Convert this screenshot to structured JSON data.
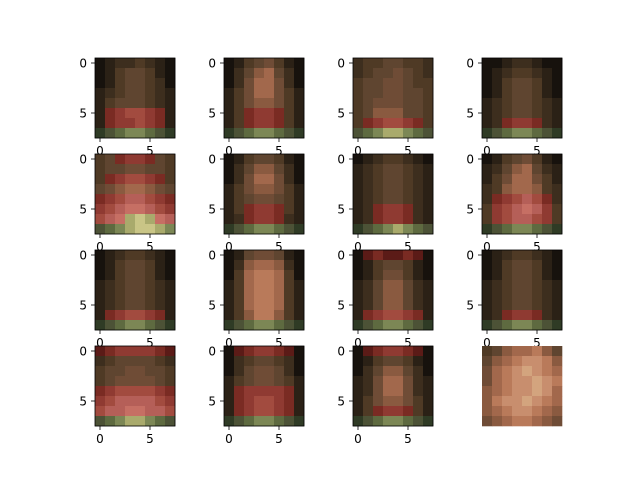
{
  "chart_data": {
    "type": "heatmap",
    "layout": "4x4 grid of 8x8 pixel image thumbnails (matplotlib imshow), RGB",
    "palette": {
      "A": "#17120d",
      "B": "#2b2116",
      "C": "#3d2e1e",
      "D": "#4f3a25",
      "E": "#5f4530",
      "F": "#6f4c36",
      "G": "#8a5a40",
      "H": "#a2684c",
      "I": "#b97a5a",
      "J": "#c88e6e",
      "K": "#d3a47e",
      "L": "#5b1b17",
      "M": "#7a2b23",
      "N": "#8f3a32",
      "O": "#a24b3f",
      "P": "#b55f58",
      "Q": "#c66f64",
      "R": "#4c5236",
      "S": "#5e6a40",
      "T": "#7c8755",
      "U": "#a9aa6c",
      "V": "#c9c586",
      "W": "#3a3220",
      "X": "#556038",
      "Y": "#2f3b25",
      "Z": "#6b6a3c"
    },
    "images": [
      {
        "axes": true,
        "x_ticks": [
          "0",
          "5"
        ],
        "y_ticks": [
          "0",
          "5"
        ],
        "rows": [
          "ABCCDCBA",
          "ABDEEDBA",
          "ABDEEDCA",
          "BCDEEDCB",
          "BDEEEDCB",
          "BMNOONMB",
          "BMNNONMB",
          "YRSTTSRY"
        ]
      },
      {
        "axes": true,
        "x_ticks": [
          "0",
          "5"
        ],
        "y_ticks": [
          "0",
          "5"
        ],
        "rows": [
          "ABDEFDBA",
          "ACEGHECA",
          "ACFHHFCA",
          "BDFHHFDB",
          "BDFGGFDB",
          "BDMNNMDB",
          "BDMNNMDB",
          "YRSTTSRY"
        ]
      },
      {
        "axes": true,
        "x_ticks": [
          "0",
          "5"
        ],
        "y_ticks": [
          "0",
          "5"
        ],
        "rows": [
          "CDDEEDDC",
          "CDEEFEDC",
          "DEEFFEDD",
          "DEEFFEED",
          "DEFFFEED",
          "DEGGGEED",
          "DMNOONMD",
          "RSTUUTSR"
        ]
      },
      {
        "axes": true,
        "x_ticks": [
          "0",
          "5"
        ],
        "y_ticks": [
          "0",
          "5"
        ],
        "rows": [
          "AABCCBAA",
          "ABCDDCBA",
          "ABDEEDBA",
          "ABDEEDBA",
          "BCDEEDCB",
          "BCDEEDCB",
          "BCMNNMCB",
          "YRSTTSRY"
        ]
      },
      {
        "axes": true,
        "x_ticks": [
          "0",
          "5"
        ],
        "y_ticks": [
          "0",
          "5"
        ],
        "rows": [
          "DEMNNMED",
          "DEEFFEED",
          "DMNOONMD",
          "EFGHHGFE",
          "MNOPPONM",
          "NOPQQPON",
          "OPQUVUQP",
          "RSTUVVUT"
        ]
      },
      {
        "axes": true,
        "x_ticks": [
          "0",
          "5"
        ],
        "y_ticks": [
          "0",
          "5"
        ],
        "rows": [
          "ABDEEDBA",
          "ACEGGECA",
          "ACFHHFCA",
          "BDFGGFDB",
          "BDEFFEDB",
          "BDMNNMDB",
          "BCMNNMCB",
          "YRSTTSRY"
        ]
      },
      {
        "axes": true,
        "x_ticks": [
          "0",
          "5"
        ],
        "y_ticks": [
          "0",
          "5"
        ],
        "rows": [
          "ABCDDCBA",
          "BCDEEDCB",
          "BCDEEDCB",
          "BCDEEDCB",
          "BCDEEDCB",
          "BCMNNMCB",
          "BCMNNMCB",
          "YRSTUTSR"
        ]
      },
      {
        "axes": true,
        "x_ticks": [
          "0",
          "5"
        ],
        "y_ticks": [
          "0",
          "5"
        ],
        "rows": [
          "ABDEFDBA",
          "BCEGHECB",
          "BDFHHFDB",
          "CDGHHGDC",
          "CMNOPOMC",
          "DNOPQPND",
          "DNOPPOND",
          "YRSTTSRY"
        ]
      },
      {
        "axes": true,
        "x_ticks": [
          "0",
          "5"
        ],
        "y_ticks": [
          "0",
          "5"
        ],
        "rows": [
          "ABCDDCBA",
          "ABDEEDBA",
          "ABDEEDBA",
          "BCDEEDCB",
          "BCDEEDCB",
          "BCDEEDCB",
          "BMNOONMB",
          "YRSTTSRY"
        ]
      },
      {
        "axes": true,
        "x_ticks": [
          "0",
          "5"
        ],
        "y_ticks": [
          "0",
          "5"
        ],
        "rows": [
          "ABEFFEBA",
          "ACGHHGCA",
          "ADHIIHDA",
          "BDHIIHDB",
          "BDHIIHDB",
          "BDHIIHDB",
          "BDGIIGDB",
          "YRSTTSRY"
        ]
      },
      {
        "axes": true,
        "x_ticks": [
          "0",
          "5"
        ],
        "y_ticks": [
          "0",
          "5"
        ],
        "rows": [
          "ALMLLMLA",
          "ABDEEDBA",
          "ABDFFDBA",
          "BCEGGECB",
          "BCEGGECB",
          "BCEGGECB",
          "BMNOONMB",
          "YRSTTSRY"
        ]
      },
      {
        "axes": true,
        "x_ticks": [
          "0",
          "5"
        ],
        "y_ticks": [
          "0",
          "5"
        ],
        "rows": [
          "ABCDDCBA",
          "ABDEEDBA",
          "ABDEEDBA",
          "BCDEEDCB",
          "BCDEEDCB",
          "BCDEEDCB",
          "BCMNNMCB",
          "YRSTTSRY"
        ]
      },
      {
        "axes": true,
        "x_ticks": [
          "0",
          "5"
        ],
        "y_ticks": [
          "0",
          "5"
        ],
        "rows": [
          "LMNNNNML",
          "CDEEEEDC",
          "DEEFFEED",
          "DEFFFFED",
          "MNOOOONM",
          "NOPPPPON",
          "OPPQQPPO",
          "RSTUUTSR"
        ]
      },
      {
        "axes": true,
        "x_ticks": [
          "0",
          "5"
        ],
        "y_ticks": [
          "0",
          "5"
        ],
        "rows": [
          "ALMNNMLA",
          "ACDEEDCA",
          "ACEFFECA",
          "BDEFFEDB",
          "BMNNNNMB",
          "BMNOONMB",
          "BMNOONMB",
          "YRSTTSRY"
        ]
      },
      {
        "axes": true,
        "x_ticks": [
          "0",
          "5"
        ],
        "y_ticks": [
          "0",
          "5"
        ],
        "rows": [
          "ALMNNMLA",
          "ABDEEDBA",
          "ACEGGECA",
          "BCFHHFCB",
          "BCFHHFCB",
          "BDFGGFDB",
          "BDMNNMDB",
          "YRSTTSRY"
        ]
      },
      {
        "axes": false,
        "x_ticks": [],
        "y_ticks": [],
        "rows": [
          "DEGHHIGE",
          "EGHIJJIG",
          "FHIJKJIH",
          "FHIJJKJI",
          "GHIJJKJH",
          "GIJJKJIH",
          "GHIJJIHG",
          "FGHIIHGF"
        ]
      }
    ]
  }
}
